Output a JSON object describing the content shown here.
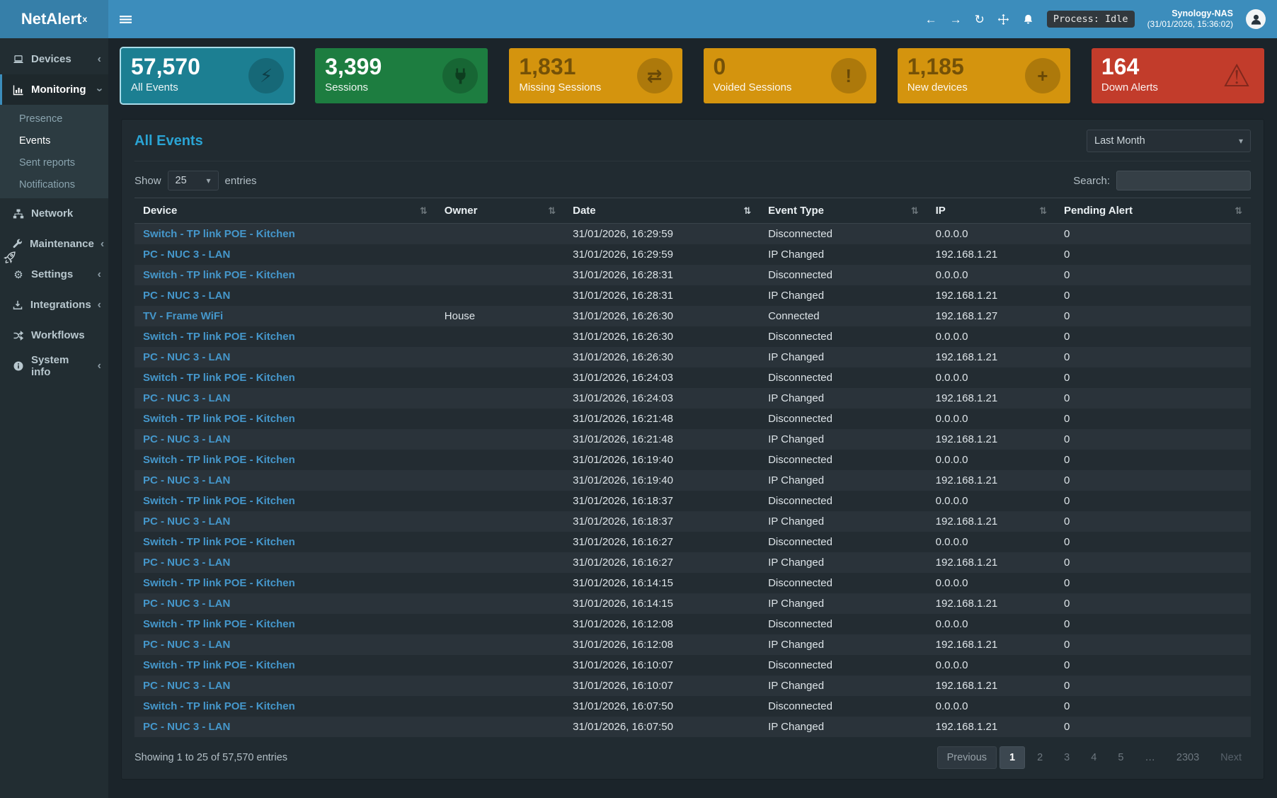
{
  "app": {
    "brand": "NetAlert",
    "brand_sup": "x"
  },
  "navbar": {
    "process_status": "Process: Idle",
    "host_name": "Synology-NAS",
    "host_time": "(31/01/2026, 15:36:02)"
  },
  "sidebar": {
    "items": [
      {
        "id": "devices",
        "label": "Devices",
        "icon": "laptop-icon",
        "chevron": "left"
      },
      {
        "id": "monitoring",
        "label": "Monitoring",
        "icon": "chart-icon",
        "chevron": "down",
        "active": true,
        "children": [
          {
            "id": "presence",
            "label": "Presence"
          },
          {
            "id": "events",
            "label": "Events",
            "active": true
          },
          {
            "id": "sent-reports",
            "label": "Sent reports"
          },
          {
            "id": "notifications",
            "label": "Notifications"
          }
        ]
      },
      {
        "id": "network",
        "label": "Network",
        "icon": "network-icon"
      },
      {
        "id": "maintenance",
        "label": "Maintenance",
        "icon": "wrench-icon",
        "chevron": "left"
      },
      {
        "id": "settings",
        "label": "Settings",
        "icon": "gear-icon",
        "chevron": "left"
      },
      {
        "id": "integrations",
        "label": "Integrations",
        "icon": "integrations-icon",
        "chevron": "left"
      },
      {
        "id": "workflows",
        "label": "Workflows",
        "icon": "shuffle-icon"
      },
      {
        "id": "system-info",
        "label": "System info",
        "icon": "info-icon",
        "chevron": "left"
      }
    ]
  },
  "cards": [
    {
      "value": "57,570",
      "label": "All Events",
      "bg": "#1c7f92",
      "icon": "bolt-icon",
      "text": "light",
      "selected": true
    },
    {
      "value": "3,399",
      "label": "Sessions",
      "bg": "#1d7d40",
      "icon": "plug-icon",
      "text": "light"
    },
    {
      "value": "1,831",
      "label": "Missing Sessions",
      "bg": "#d4940e",
      "icon": "transfer-icon",
      "text": "dark"
    },
    {
      "value": "0",
      "label": "Voided Sessions",
      "bg": "#d4940e",
      "icon": "exclamation-icon",
      "text": "dark"
    },
    {
      "value": "1,185",
      "label": "New devices",
      "bg": "#d4940e",
      "icon": "plus-icon",
      "text": "dark"
    },
    {
      "value": "164",
      "label": "Down Alerts",
      "bg": "#c23c2b",
      "icon": "warning-icon",
      "text": "light"
    }
  ],
  "events_panel": {
    "title": "All Events",
    "period": "Last Month",
    "show_label": "Show",
    "page_size": "25",
    "entries_label": "entries",
    "search_label": "Search:",
    "search_value": "",
    "columns": [
      "Device",
      "Owner",
      "Date",
      "Event Type",
      "IP",
      "Pending Alert"
    ],
    "sorted_column": "Date",
    "rows": [
      [
        "Switch - TP link POE - Kitchen",
        "",
        "31/01/2026, 16:29:59",
        "Disconnected",
        "0.0.0.0",
        "0"
      ],
      [
        "PC - NUC 3 - LAN",
        "",
        "31/01/2026, 16:29:59",
        "IP Changed",
        "192.168.1.21",
        "0"
      ],
      [
        "Switch - TP link POE - Kitchen",
        "",
        "31/01/2026, 16:28:31",
        "Disconnected",
        "0.0.0.0",
        "0"
      ],
      [
        "PC - NUC 3 - LAN",
        "",
        "31/01/2026, 16:28:31",
        "IP Changed",
        "192.168.1.21",
        "0"
      ],
      [
        "TV - Frame WiFi",
        "House",
        "31/01/2026, 16:26:30",
        "Connected",
        "192.168.1.27",
        "0"
      ],
      [
        "Switch - TP link POE - Kitchen",
        "",
        "31/01/2026, 16:26:30",
        "Disconnected",
        "0.0.0.0",
        "0"
      ],
      [
        "PC - NUC 3 - LAN",
        "",
        "31/01/2026, 16:26:30",
        "IP Changed",
        "192.168.1.21",
        "0"
      ],
      [
        "Switch - TP link POE - Kitchen",
        "",
        "31/01/2026, 16:24:03",
        "Disconnected",
        "0.0.0.0",
        "0"
      ],
      [
        "PC - NUC 3 - LAN",
        "",
        "31/01/2026, 16:24:03",
        "IP Changed",
        "192.168.1.21",
        "0"
      ],
      [
        "Switch - TP link POE - Kitchen",
        "",
        "31/01/2026, 16:21:48",
        "Disconnected",
        "0.0.0.0",
        "0"
      ],
      [
        "PC - NUC 3 - LAN",
        "",
        "31/01/2026, 16:21:48",
        "IP Changed",
        "192.168.1.21",
        "0"
      ],
      [
        "Switch - TP link POE - Kitchen",
        "",
        "31/01/2026, 16:19:40",
        "Disconnected",
        "0.0.0.0",
        "0"
      ],
      [
        "PC - NUC 3 - LAN",
        "",
        "31/01/2026, 16:19:40",
        "IP Changed",
        "192.168.1.21",
        "0"
      ],
      [
        "Switch - TP link POE - Kitchen",
        "",
        "31/01/2026, 16:18:37",
        "Disconnected",
        "0.0.0.0",
        "0"
      ],
      [
        "PC - NUC 3 - LAN",
        "",
        "31/01/2026, 16:18:37",
        "IP Changed",
        "192.168.1.21",
        "0"
      ],
      [
        "Switch - TP link POE - Kitchen",
        "",
        "31/01/2026, 16:16:27",
        "Disconnected",
        "0.0.0.0",
        "0"
      ],
      [
        "PC - NUC 3 - LAN",
        "",
        "31/01/2026, 16:16:27",
        "IP Changed",
        "192.168.1.21",
        "0"
      ],
      [
        "Switch - TP link POE - Kitchen",
        "",
        "31/01/2026, 16:14:15",
        "Disconnected",
        "0.0.0.0",
        "0"
      ],
      [
        "PC - NUC 3 - LAN",
        "",
        "31/01/2026, 16:14:15",
        "IP Changed",
        "192.168.1.21",
        "0"
      ],
      [
        "Switch - TP link POE - Kitchen",
        "",
        "31/01/2026, 16:12:08",
        "Disconnected",
        "0.0.0.0",
        "0"
      ],
      [
        "PC - NUC 3 - LAN",
        "",
        "31/01/2026, 16:12:08",
        "IP Changed",
        "192.168.1.21",
        "0"
      ],
      [
        "Switch - TP link POE - Kitchen",
        "",
        "31/01/2026, 16:10:07",
        "Disconnected",
        "0.0.0.0",
        "0"
      ],
      [
        "PC - NUC 3 - LAN",
        "",
        "31/01/2026, 16:10:07",
        "IP Changed",
        "192.168.1.21",
        "0"
      ],
      [
        "Switch - TP link POE - Kitchen",
        "",
        "31/01/2026, 16:07:50",
        "Disconnected",
        "0.0.0.0",
        "0"
      ],
      [
        "PC - NUC 3 - LAN",
        "",
        "31/01/2026, 16:07:50",
        "IP Changed",
        "192.168.1.21",
        "0"
      ]
    ],
    "summary": "Showing 1 to 25 of 57,570 entries",
    "pagination": {
      "prev": "Previous",
      "pages": [
        "1",
        "2",
        "3",
        "4",
        "5",
        "…",
        "2303"
      ],
      "active": "1",
      "next": "Next"
    }
  }
}
